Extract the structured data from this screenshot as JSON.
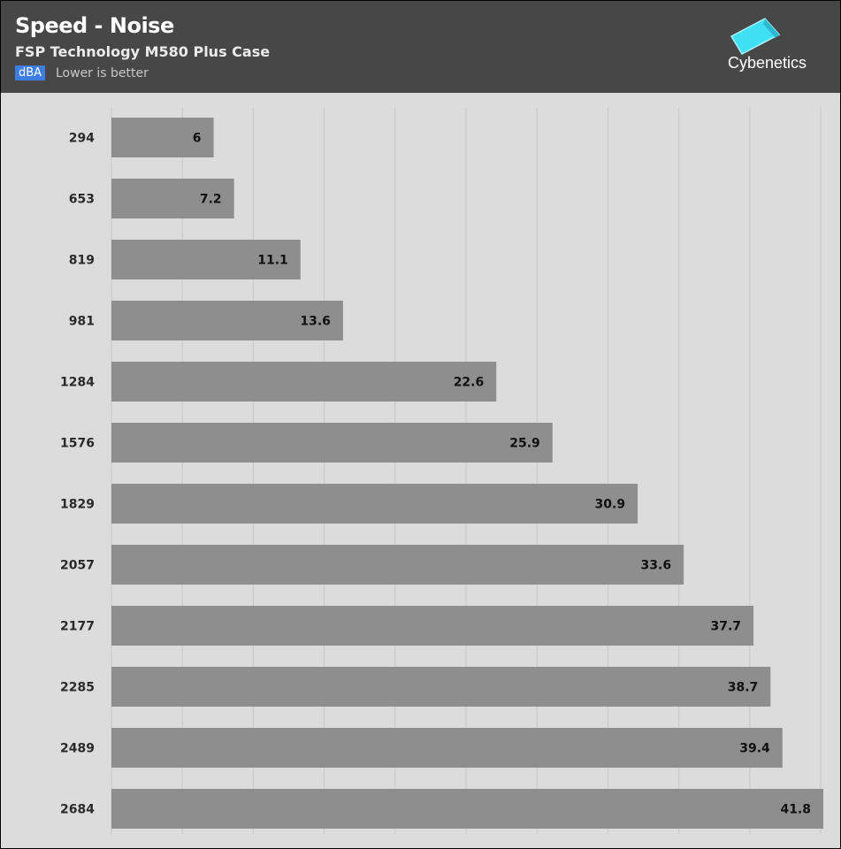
{
  "header": {
    "title": "Speed - Noise",
    "subtitle": "FSP Technology M580 Plus Case",
    "unit_badge": "dBA",
    "note": "Lower is better",
    "logo_text": "Cybenetics"
  },
  "colors": {
    "header_bg": "#474747",
    "plot_bg": "#dcdcdc",
    "bar": "#8e8e8e",
    "grid": "#c8c8c8",
    "badge": "#3d7ee6",
    "logo_accent": "#3fe0f5"
  },
  "chart_data": {
    "type": "bar",
    "orientation": "horizontal",
    "categories": [
      "294",
      "653",
      "819",
      "981",
      "1284",
      "1576",
      "1829",
      "2057",
      "2177",
      "2285",
      "2489",
      "2684"
    ],
    "values": [
      6,
      7.2,
      11.1,
      13.6,
      22.6,
      25.9,
      30.9,
      33.6,
      37.7,
      38.7,
      39.4,
      41.8
    ],
    "xlim": [
      0,
      41.8
    ],
    "grid": true,
    "legend": "none"
  }
}
